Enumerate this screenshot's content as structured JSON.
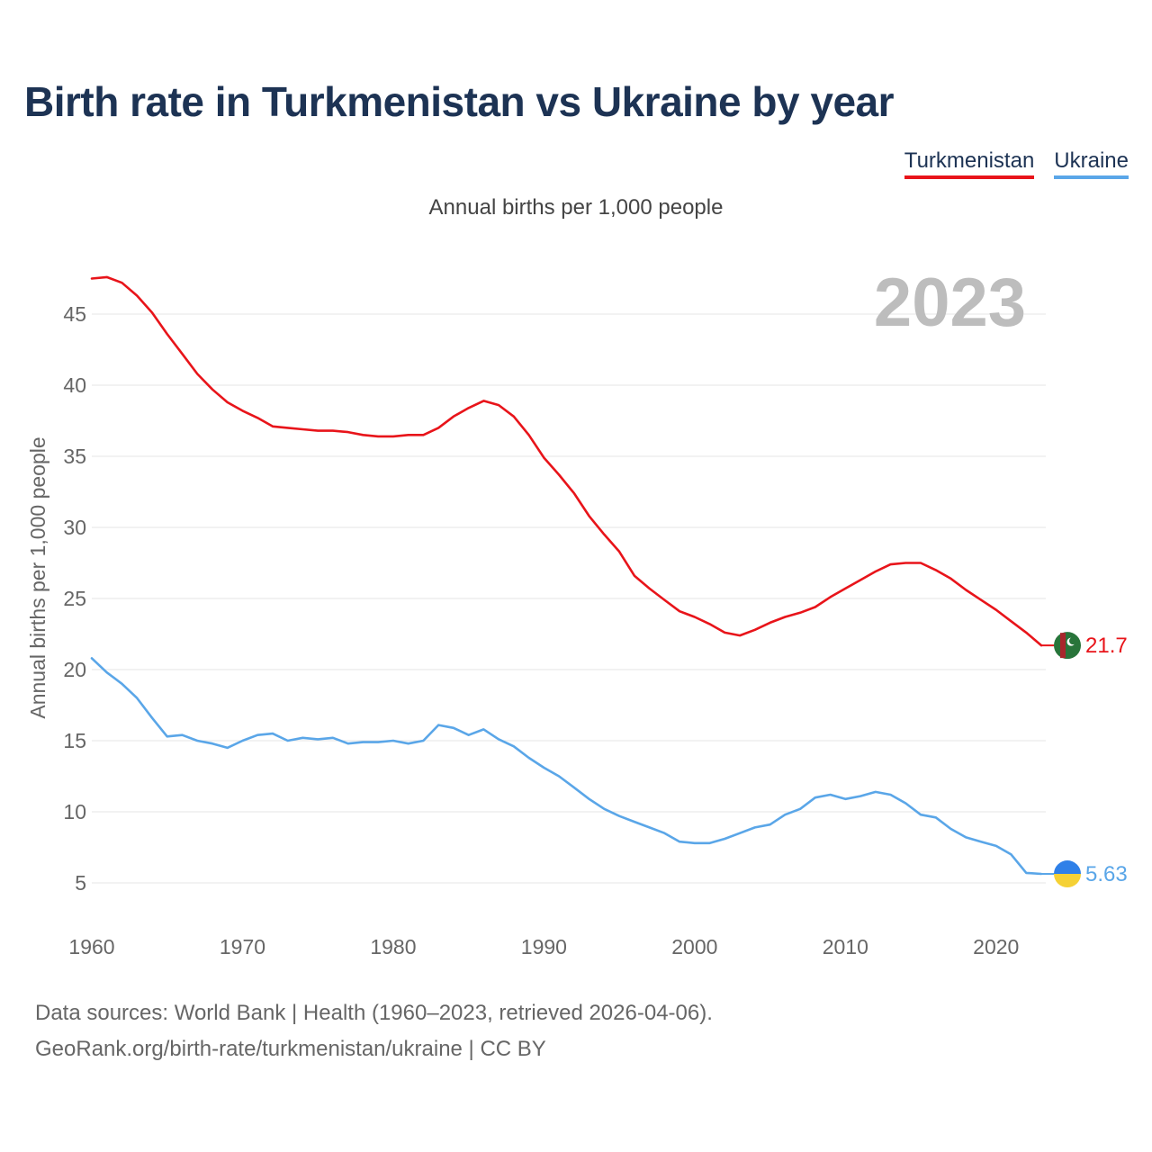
{
  "chart_data": {
    "type": "line",
    "title": "Birth rate in Turkmenistan vs Ukraine by year",
    "subtitle": "Annual births per 1,000 people",
    "ylabel": "Annual births per 1,000 people",
    "xlabel": "",
    "year_mark": "2023",
    "xlim": [
      1960,
      2023
    ],
    "ylim": [
      2,
      48
    ],
    "x_ticks": [
      1960,
      1970,
      1980,
      1990,
      2000,
      2010,
      2020
    ],
    "y_ticks": [
      5,
      10,
      15,
      20,
      25,
      30,
      35,
      40,
      45
    ],
    "x": [
      1960,
      1961,
      1962,
      1963,
      1964,
      1965,
      1966,
      1967,
      1968,
      1969,
      1970,
      1971,
      1972,
      1973,
      1974,
      1975,
      1976,
      1977,
      1978,
      1979,
      1980,
      1981,
      1982,
      1983,
      1984,
      1985,
      1986,
      1987,
      1988,
      1989,
      1990,
      1991,
      1992,
      1993,
      1994,
      1995,
      1996,
      1997,
      1998,
      1999,
      2000,
      2001,
      2002,
      2003,
      2004,
      2005,
      2006,
      2007,
      2008,
      2009,
      2010,
      2011,
      2012,
      2013,
      2014,
      2015,
      2016,
      2017,
      2018,
      2019,
      2020,
      2021,
      2022,
      2023
    ],
    "series": [
      {
        "name": "Turkmenistan",
        "color": "#e8141a",
        "end_label": "21.7",
        "values": [
          47.5,
          47.6,
          47.2,
          46.3,
          45.1,
          43.6,
          42.2,
          40.8,
          39.7,
          38.8,
          38.2,
          37.7,
          37.1,
          37.0,
          36.9,
          36.8,
          36.8,
          36.7,
          36.5,
          36.4,
          36.4,
          36.5,
          36.5,
          37.0,
          37.8,
          38.4,
          38.9,
          38.6,
          37.8,
          36.5,
          34.9,
          33.7,
          32.4,
          30.8,
          29.5,
          28.3,
          26.6,
          25.7,
          24.9,
          24.1,
          23.7,
          23.2,
          22.6,
          22.4,
          22.8,
          23.3,
          23.7,
          24.0,
          24.4,
          25.1,
          25.7,
          26.3,
          26.9,
          27.4,
          27.5,
          27.5,
          27.0,
          26.4,
          25.6,
          24.9,
          24.2,
          23.4,
          22.6,
          21.7
        ]
      },
      {
        "name": "Ukraine",
        "color": "#5aa6e8",
        "end_label": "5.63",
        "values": [
          20.8,
          19.8,
          19.0,
          18.0,
          16.6,
          15.3,
          15.4,
          15.0,
          14.8,
          14.5,
          15.0,
          15.4,
          15.5,
          15.0,
          15.2,
          15.1,
          15.2,
          14.8,
          14.9,
          14.9,
          15.0,
          14.8,
          15.0,
          16.1,
          15.9,
          15.4,
          15.8,
          15.1,
          14.6,
          13.8,
          13.1,
          12.5,
          11.7,
          10.9,
          10.2,
          9.7,
          9.3,
          8.9,
          8.5,
          7.9,
          7.8,
          7.8,
          8.1,
          8.5,
          8.9,
          9.1,
          9.8,
          10.2,
          11.0,
          11.2,
          10.9,
          11.1,
          11.4,
          11.2,
          10.6,
          9.8,
          9.6,
          8.8,
          8.2,
          7.9,
          7.6,
          7.0,
          5.7,
          5.63
        ]
      }
    ]
  },
  "legend": [
    {
      "label": "Turkmenistan",
      "color": "#e8141a"
    },
    {
      "label": "Ukraine",
      "color": "#5aa6e8"
    }
  ],
  "footer": {
    "line1": "Data sources: World Bank | Health (1960–2023, retrieved 2026-04-06).",
    "line2": "GeoRank.org/birth-rate/turkmenistan/ukraine | CC BY"
  }
}
